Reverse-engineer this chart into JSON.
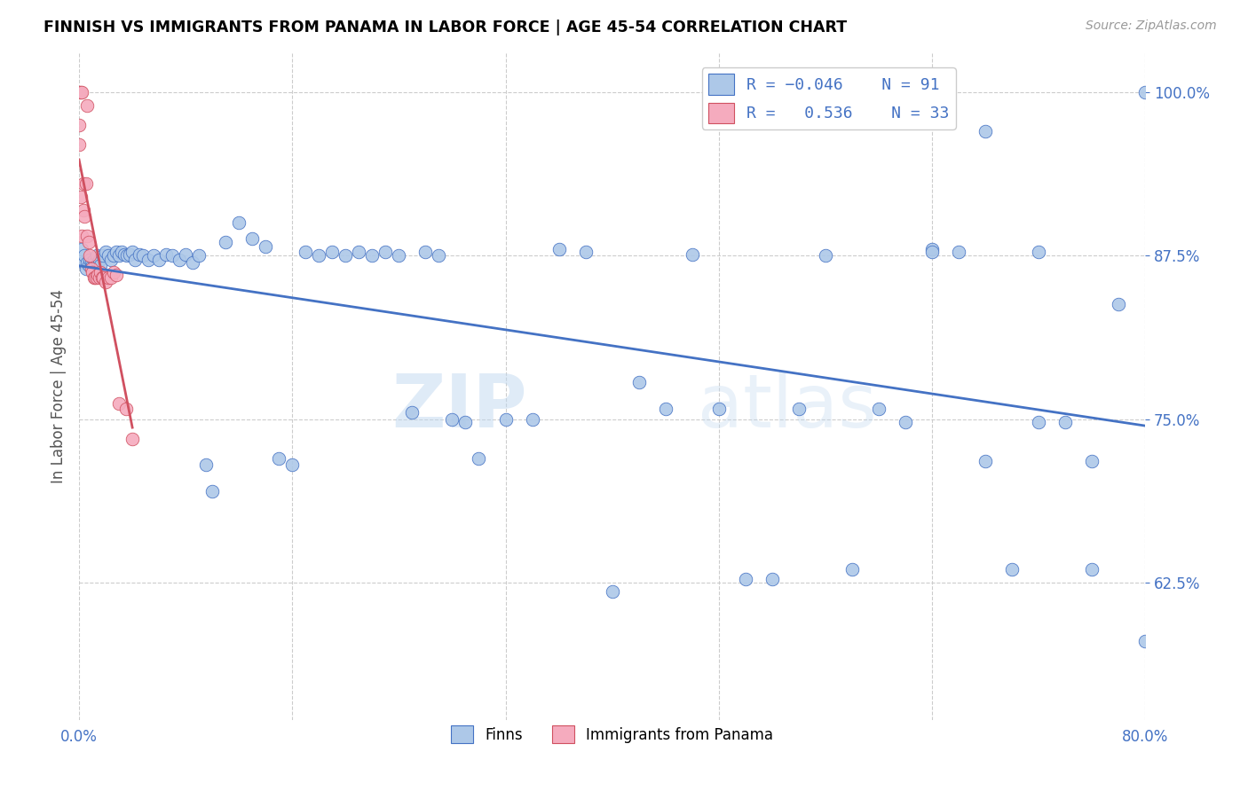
{
  "title": "FINNISH VS IMMIGRANTS FROM PANAMA IN LABOR FORCE | AGE 45-54 CORRELATION CHART",
  "source": "Source: ZipAtlas.com",
  "ylabel": "In Labor Force | Age 45-54",
  "xlim": [
    0.0,
    0.8
  ],
  "ylim": [
    0.52,
    1.03
  ],
  "yticks": [
    0.625,
    0.75,
    0.875,
    1.0
  ],
  "ytick_labels": [
    "62.5%",
    "75.0%",
    "87.5%",
    "100.0%"
  ],
  "xticks": [
    0.0,
    0.16,
    0.32,
    0.48,
    0.64,
    0.8
  ],
  "xtick_labels": [
    "0.0%",
    "",
    "",
    "",
    "",
    "80.0%"
  ],
  "finns_R": -0.046,
  "finns_N": 91,
  "panama_R": 0.536,
  "panama_N": 33,
  "finns_color": "#adc8e8",
  "panama_color": "#f5abbe",
  "trend_finns_color": "#4472c4",
  "trend_panama_color": "#d05060",
  "watermark": "ZIPatlas",
  "finns_x": [
    0.002,
    0.003,
    0.004,
    0.005,
    0.006,
    0.007,
    0.008,
    0.009,
    0.01,
    0.011,
    0.012,
    0.013,
    0.014,
    0.015,
    0.016,
    0.018,
    0.02,
    0.022,
    0.024,
    0.026,
    0.028,
    0.03,
    0.032,
    0.034,
    0.036,
    0.038,
    0.04,
    0.042,
    0.045,
    0.048,
    0.052,
    0.056,
    0.06,
    0.065,
    0.07,
    0.075,
    0.08,
    0.085,
    0.09,
    0.095,
    0.1,
    0.11,
    0.12,
    0.13,
    0.14,
    0.15,
    0.16,
    0.17,
    0.18,
    0.19,
    0.2,
    0.21,
    0.22,
    0.23,
    0.24,
    0.25,
    0.26,
    0.27,
    0.28,
    0.29,
    0.3,
    0.32,
    0.34,
    0.36,
    0.38,
    0.4,
    0.42,
    0.44,
    0.46,
    0.48,
    0.5,
    0.52,
    0.54,
    0.56,
    0.58,
    0.6,
    0.62,
    0.64,
    0.66,
    0.68,
    0.7,
    0.72,
    0.74,
    0.76,
    0.78,
    0.8,
    0.64,
    0.68,
    0.72,
    0.76,
    0.8
  ],
  "finns_y": [
    0.88,
    0.87,
    0.875,
    0.865,
    0.87,
    0.868,
    0.872,
    0.87,
    0.868,
    0.872,
    0.87,
    0.875,
    0.87,
    0.872,
    0.868,
    0.875,
    0.878,
    0.875,
    0.872,
    0.875,
    0.878,
    0.875,
    0.878,
    0.876,
    0.875,
    0.876,
    0.878,
    0.872,
    0.876,
    0.875,
    0.872,
    0.875,
    0.872,
    0.876,
    0.875,
    0.872,
    0.876,
    0.87,
    0.875,
    0.715,
    0.695,
    0.885,
    0.9,
    0.888,
    0.882,
    0.72,
    0.715,
    0.878,
    0.875,
    0.878,
    0.875,
    0.878,
    0.875,
    0.878,
    0.875,
    0.755,
    0.878,
    0.875,
    0.75,
    0.748,
    0.72,
    0.75,
    0.75,
    0.88,
    0.878,
    0.618,
    0.778,
    0.758,
    0.876,
    0.758,
    0.628,
    0.628,
    0.758,
    0.875,
    0.635,
    0.758,
    0.748,
    0.88,
    0.878,
    0.718,
    0.635,
    0.878,
    0.748,
    0.635,
    0.838,
    0.58,
    0.878,
    0.97,
    0.748,
    0.718,
    1.0
  ],
  "panama_x": [
    0.0,
    0.0,
    0.0,
    0.001,
    0.001,
    0.002,
    0.002,
    0.003,
    0.003,
    0.004,
    0.005,
    0.006,
    0.006,
    0.007,
    0.008,
    0.009,
    0.01,
    0.011,
    0.012,
    0.013,
    0.014,
    0.015,
    0.016,
    0.017,
    0.018,
    0.02,
    0.022,
    0.024,
    0.026,
    0.028,
    0.03,
    0.035,
    0.04
  ],
  "panama_y": [
    1.0,
    0.975,
    0.96,
    1.0,
    0.92,
    1.0,
    0.89,
    0.93,
    0.91,
    0.905,
    0.93,
    0.99,
    0.89,
    0.885,
    0.875,
    0.865,
    0.862,
    0.858,
    0.858,
    0.858,
    0.86,
    0.858,
    0.862,
    0.858,
    0.858,
    0.855,
    0.858,
    0.858,
    0.862,
    0.86,
    0.762,
    0.758,
    0.735
  ]
}
